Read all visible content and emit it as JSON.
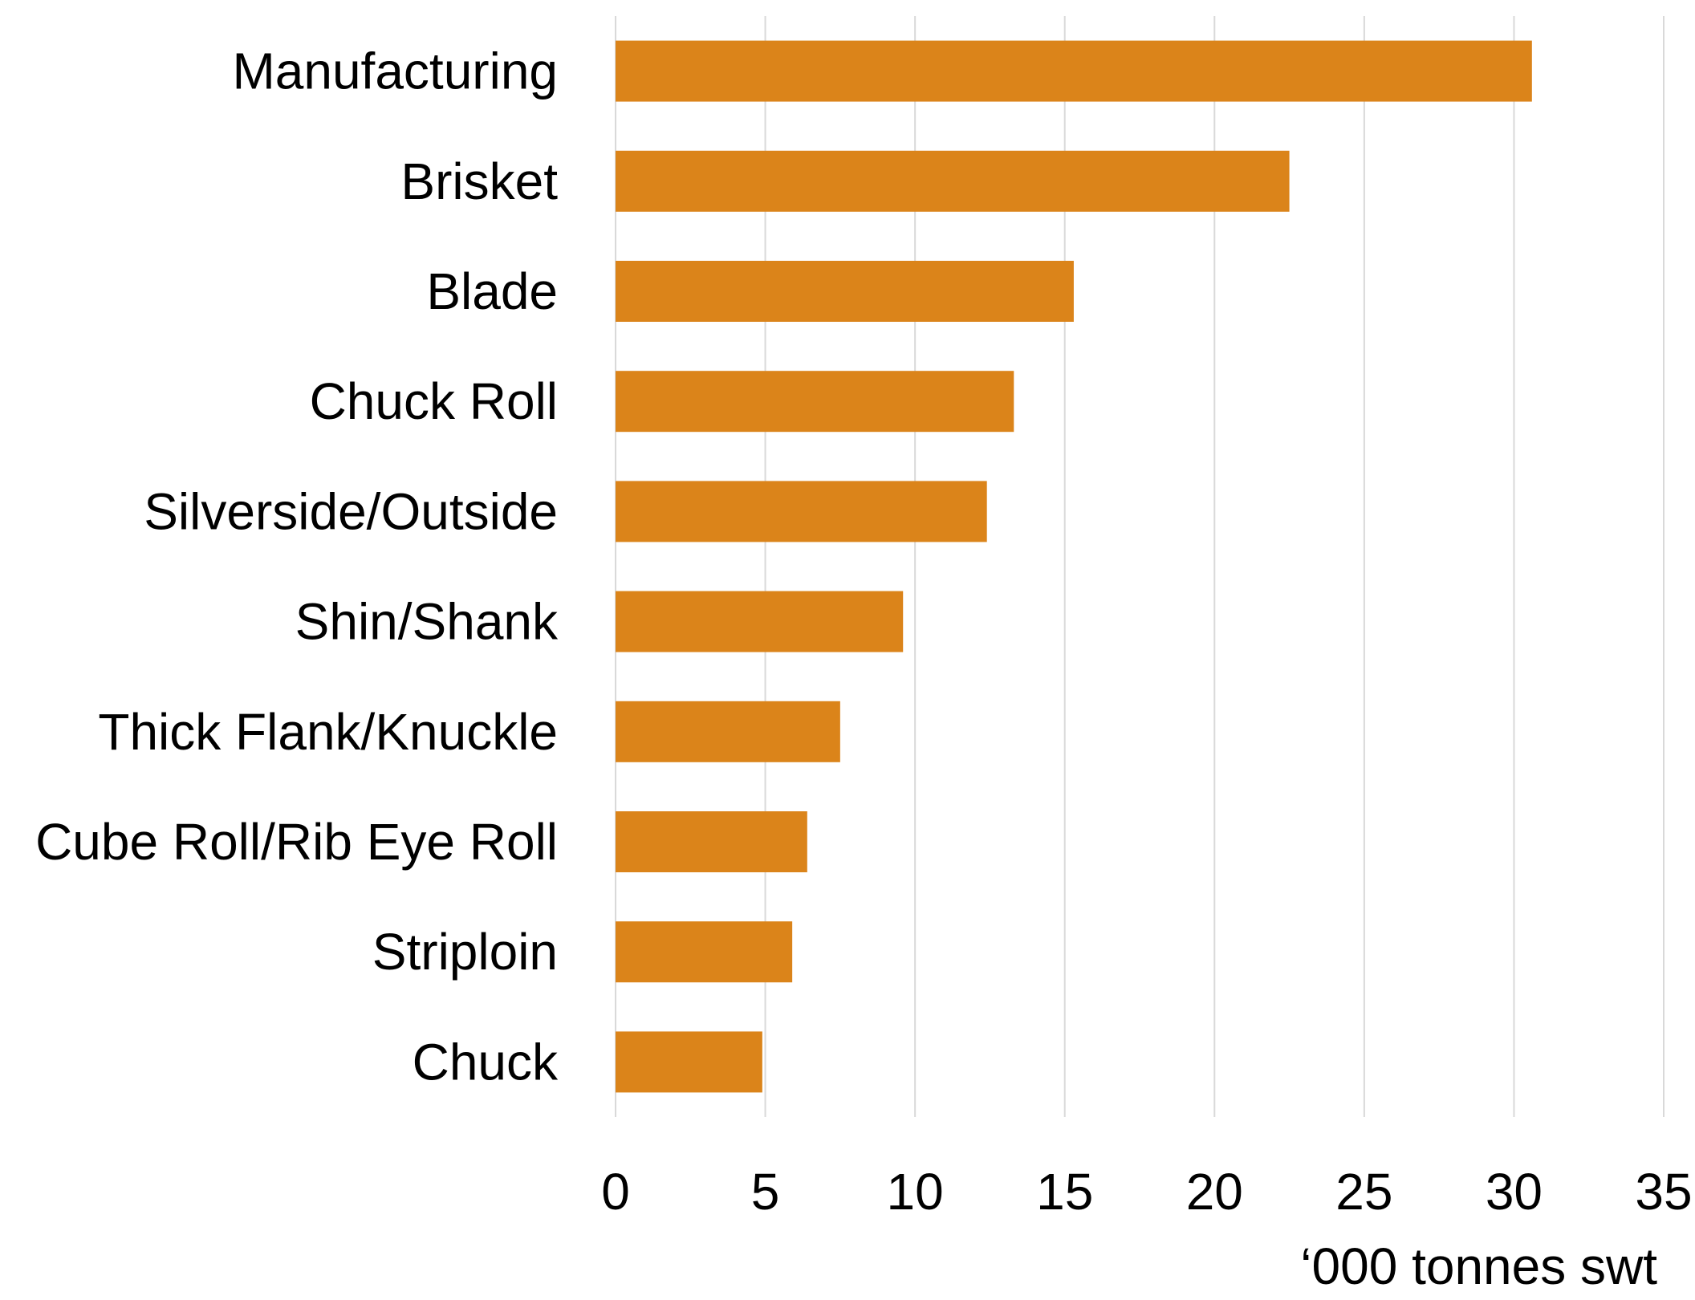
{
  "chart_data": {
    "type": "bar",
    "orientation": "horizontal",
    "categories": [
      "Manufacturing",
      "Brisket",
      "Blade",
      "Chuck Roll",
      "Silverside/Outside",
      "Shin/Shank",
      "Thick Flank/Knuckle",
      "Cube Roll/Rib Eye Roll",
      "Striploin",
      "Chuck"
    ],
    "values": [
      30.6,
      22.5,
      15.3,
      13.3,
      12.4,
      9.6,
      7.5,
      6.4,
      5.9,
      4.9
    ],
    "xlabel": "‘000 tonnes swt",
    "ylabel": "",
    "xlim": [
      0,
      35
    ],
    "x_ticks": [
      0,
      5,
      10,
      15,
      20,
      25,
      30,
      35
    ],
    "x_tick_labels": [
      "0",
      "5",
      "10",
      "15",
      "20",
      "25",
      "30",
      "35"
    ],
    "grid": "vertical",
    "legend": "none",
    "colors": {
      "bar": "#DB841A",
      "grid": "#D9D9D9",
      "text": "#000000"
    }
  }
}
